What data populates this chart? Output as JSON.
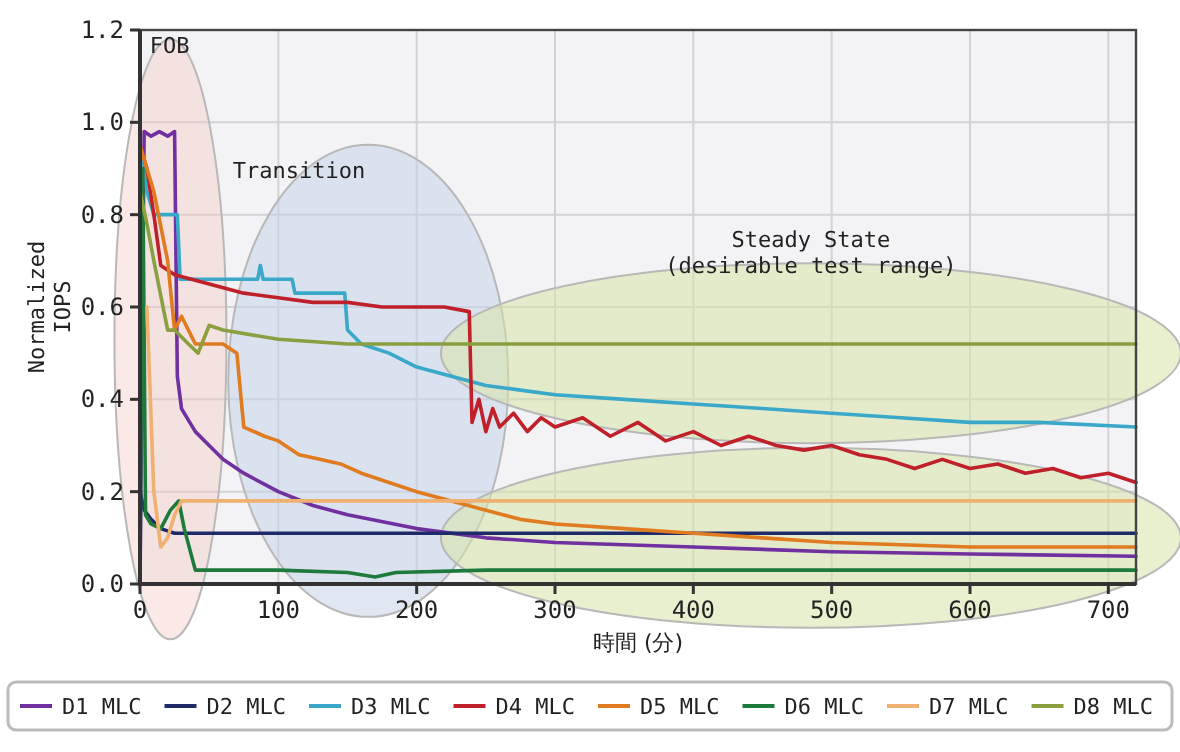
{
  "chart_data": {
    "type": "line",
    "xlabel": "時間 (分)",
    "ylabel": "Normalized IOPS",
    "xlim": [
      0,
      720
    ],
    "xticks": [
      0,
      100,
      200,
      300,
      400,
      500,
      600,
      700
    ],
    "ylim": [
      0,
      1.2
    ],
    "yticks": [
      {
        "value": 0,
        "label": "0.0"
      },
      {
        "value": 0.2,
        "label": "0.2"
      },
      {
        "value": 0.4,
        "label": "0.4"
      },
      {
        "value": 0.6,
        "label": "0.6"
      },
      {
        "value": 0.8,
        "label": "0.8"
      },
      {
        "value": 1.0,
        "label": "1.0"
      },
      {
        "value": 1.2,
        "label": "1.2"
      }
    ],
    "grid": true,
    "legend": "bottom",
    "marker": "none",
    "line_style": "solid",
    "annotations": [
      "FOB",
      "Transition",
      "Steady State (desirable test range)"
    ],
    "series": [
      {
        "name": "D1 MLC",
        "color": "#7030a0",
        "x": [
          0,
          3,
          8,
          14,
          20,
          25,
          27,
          30,
          40,
          50,
          60,
          75,
          100,
          125,
          150,
          200,
          250,
          300,
          400,
          500,
          600,
          720
        ],
        "values": [
          0.0,
          0.98,
          0.97,
          0.98,
          0.97,
          0.98,
          0.45,
          0.38,
          0.33,
          0.3,
          0.27,
          0.24,
          0.2,
          0.17,
          0.15,
          0.12,
          0.1,
          0.09,
          0.08,
          0.07,
          0.065,
          0.06
        ]
      },
      {
        "name": "D2 MLC",
        "color": "#1f2a6b",
        "x": [
          0,
          3,
          8,
          15,
          25,
          50,
          100,
          150,
          200,
          250,
          300,
          350,
          400,
          450,
          500,
          550,
          600,
          650,
          720
        ],
        "values": [
          0.2,
          0.16,
          0.14,
          0.12,
          0.11,
          0.11,
          0.11,
          0.11,
          0.11,
          0.11,
          0.11,
          0.11,
          0.11,
          0.11,
          0.11,
          0.11,
          0.11,
          0.11,
          0.11
        ]
      },
      {
        "name": "D3 MLC",
        "color": "#3aa8c8",
        "x": [
          0,
          5,
          10,
          27,
          29,
          60,
          85,
          87,
          89,
          110,
          112,
          148,
          150,
          160,
          180,
          200,
          225,
          250,
          275,
          300,
          350,
          400,
          450,
          500,
          550,
          600,
          650,
          720
        ],
        "values": [
          0.95,
          0.85,
          0.8,
          0.8,
          0.66,
          0.66,
          0.66,
          0.69,
          0.66,
          0.66,
          0.63,
          0.63,
          0.55,
          0.52,
          0.5,
          0.47,
          0.45,
          0.43,
          0.42,
          0.41,
          0.4,
          0.39,
          0.38,
          0.37,
          0.36,
          0.35,
          0.35,
          0.34
        ]
      },
      {
        "name": "D4 MLC",
        "color": "#c0202a",
        "x": [
          0,
          5,
          10,
          15,
          25,
          50,
          75,
          100,
          125,
          150,
          175,
          200,
          220,
          238,
          240,
          245,
          250,
          255,
          260,
          270,
          280,
          290,
          300,
          320,
          340,
          360,
          380,
          400,
          420,
          440,
          460,
          480,
          500,
          520,
          540,
          560,
          580,
          600,
          620,
          640,
          660,
          680,
          700,
          720
        ],
        "values": [
          0.95,
          0.9,
          0.8,
          0.69,
          0.67,
          0.65,
          0.63,
          0.62,
          0.61,
          0.61,
          0.6,
          0.6,
          0.6,
          0.59,
          0.35,
          0.4,
          0.33,
          0.38,
          0.34,
          0.37,
          0.33,
          0.36,
          0.34,
          0.36,
          0.32,
          0.35,
          0.31,
          0.33,
          0.3,
          0.32,
          0.3,
          0.29,
          0.3,
          0.28,
          0.27,
          0.25,
          0.27,
          0.25,
          0.26,
          0.24,
          0.25,
          0.23,
          0.24,
          0.22
        ]
      },
      {
        "name": "D5 MLC",
        "color": "#e07b20",
        "x": [
          0,
          5,
          10,
          20,
          25,
          30,
          40,
          50,
          60,
          70,
          75,
          90,
          100,
          115,
          130,
          145,
          160,
          180,
          200,
          225,
          250,
          275,
          300,
          350,
          400,
          450,
          500,
          600,
          720
        ],
        "values": [
          0.95,
          0.9,
          0.85,
          0.7,
          0.55,
          0.58,
          0.52,
          0.52,
          0.52,
          0.5,
          0.34,
          0.32,
          0.31,
          0.28,
          0.27,
          0.26,
          0.24,
          0.22,
          0.2,
          0.18,
          0.16,
          0.14,
          0.13,
          0.12,
          0.11,
          0.1,
          0.09,
          0.08,
          0.08
        ]
      },
      {
        "name": "D6 MLC",
        "color": "#1e7a3a",
        "x": [
          0,
          2,
          4,
          8,
          15,
          22,
          28,
          32,
          40,
          60,
          100,
          150,
          170,
          185,
          250,
          300,
          400,
          500,
          600,
          720
        ],
        "values": [
          0.0,
          0.9,
          0.15,
          0.13,
          0.12,
          0.16,
          0.18,
          0.12,
          0.03,
          0.03,
          0.03,
          0.025,
          0.015,
          0.025,
          0.03,
          0.03,
          0.03,
          0.03,
          0.03,
          0.03
        ]
      },
      {
        "name": "D7 MLC",
        "color": "#f0b070",
        "x": [
          5,
          10,
          15,
          20,
          25,
          30,
          50,
          100,
          200,
          300,
          400,
          500,
          600,
          720
        ],
        "values": [
          0.6,
          0.2,
          0.08,
          0.1,
          0.15,
          0.18,
          0.18,
          0.18,
          0.18,
          0.18,
          0.18,
          0.18,
          0.18,
          0.18
        ]
      },
      {
        "name": "D8 MLC",
        "color": "#8aa040",
        "x": [
          0,
          5,
          10,
          20,
          25,
          35,
          42,
          50,
          60,
          100,
          150,
          200,
          300,
          400,
          500,
          600,
          720
        ],
        "values": [
          0.85,
          0.78,
          0.7,
          0.55,
          0.55,
          0.52,
          0.5,
          0.56,
          0.55,
          0.53,
          0.52,
          0.52,
          0.52,
          0.52,
          0.52,
          0.52,
          0.52
        ]
      }
    ]
  }
}
